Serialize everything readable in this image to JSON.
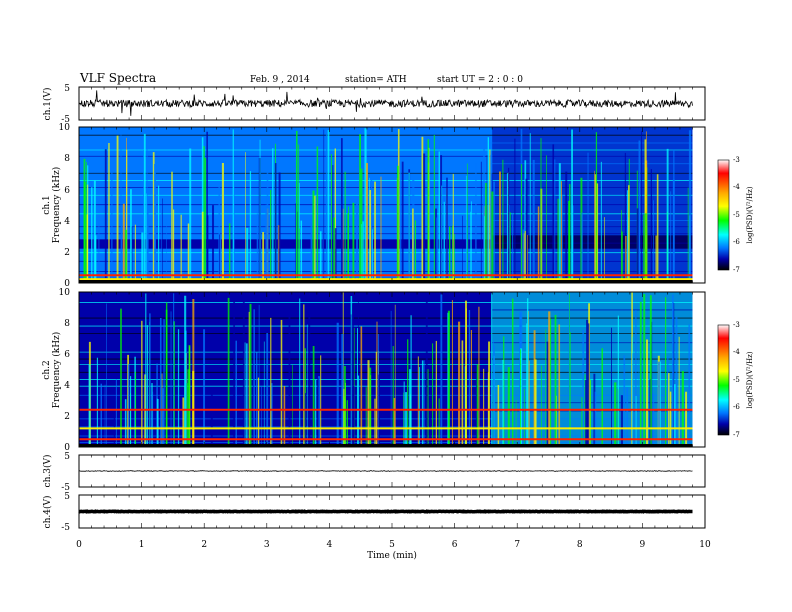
{
  "header": {
    "title": "VLF  Spectra",
    "date": "Feb. 9  , 2014",
    "station": "station= ATH",
    "start": "start  UT  =   2  : 0  : 0"
  },
  "chart_data": {
    "type": "heatmap",
    "xlabel": "Time  (min)",
    "xlim": [
      0,
      10
    ],
    "x_ticks": [
      "0",
      "1",
      "2",
      "3",
      "4",
      "5",
      "6",
      "7",
      "8",
      "9",
      "10"
    ],
    "data_end_min": 9.8,
    "event_min": 6.6,
    "panels": [
      {
        "name": "ch1-waveform",
        "kind": "waveform",
        "ylabel": "ch.1(V)",
        "ylim": [
          -5,
          5
        ],
        "y_ticks": [
          "5",
          "-5"
        ],
        "baseline": 0
      },
      {
        "name": "ch1-spectrogram",
        "kind": "spectrogram",
        "ylabel_top": "ch.1",
        "ylabel": "Frequency  (kHz)",
        "ylim": [
          0,
          10
        ],
        "y_ticks": [
          "0",
          "2",
          "4",
          "6",
          "8",
          "10"
        ],
        "colorbar": {
          "label": "log(PSD)(V²/Hz)",
          "range": [
            -7,
            -3
          ],
          "ticks": [
            "-3",
            "-4",
            "-5",
            "-6",
            "-7"
          ],
          "colors": [
            "#ffffff",
            "#ff0000",
            "#ffaa00",
            "#ffff00",
            "#00ff00",
            "#00ffff",
            "#0077ff",
            "#0000aa",
            "#000000"
          ]
        },
        "background_levels": [
          -5.9,
          -6.3
        ],
        "strong_lines_khz": [
          0.1,
          0.25,
          0.5
        ],
        "dark_band_khz": [
          2.2,
          2.8
        ]
      },
      {
        "name": "ch2-spectrogram",
        "kind": "spectrogram",
        "ylabel_top": "ch.2",
        "ylabel": "Frequency  (kHz)",
        "ylim": [
          0,
          10
        ],
        "y_ticks": [
          "0",
          "2",
          "4",
          "6",
          "8",
          "10"
        ],
        "colorbar": {
          "label": "log(PSD)(V²/Hz)",
          "range": [
            -7,
            -3
          ],
          "ticks": [
            "-3",
            "-4",
            "-5",
            "-6",
            "-7"
          ],
          "colors": [
            "#ffffff",
            "#ff0000",
            "#ffaa00",
            "#ffff00",
            "#00ff00",
            "#00ffff",
            "#0077ff",
            "#0000aa",
            "#000000"
          ]
        },
        "background_levels": [
          -6.3,
          -5.5
        ],
        "strong_lines_khz": [
          0.5,
          1.2,
          2.4
        ],
        "dark_band_khz": []
      },
      {
        "name": "ch3-waveform",
        "kind": "waveform",
        "ylabel": "ch.3(V)",
        "ylim": [
          -5,
          5
        ],
        "y_ticks": [
          "5",
          "-5"
        ],
        "baseline": 0
      },
      {
        "name": "ch4-waveform",
        "kind": "waveform",
        "ylabel": "ch.4(V)",
        "ylim": [
          -5,
          5
        ],
        "y_ticks": [
          "5",
          "-5"
        ],
        "baseline": 0
      }
    ]
  }
}
